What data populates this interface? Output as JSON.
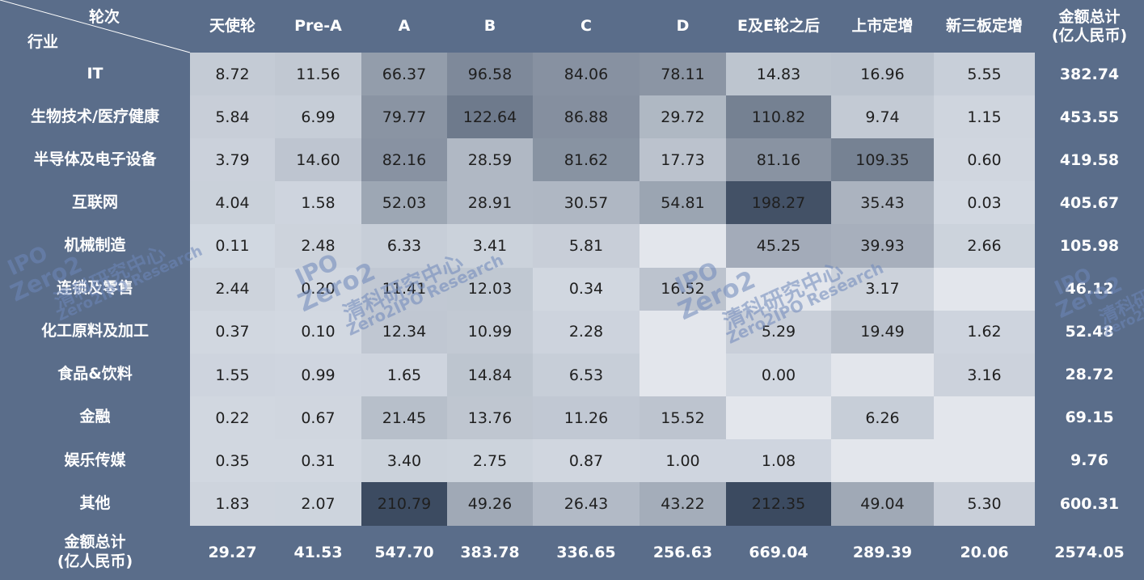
{
  "corner": {
    "top": "轮次",
    "bottom": "行业"
  },
  "columns": [
    "天使轮",
    "Pre-A",
    "A",
    "B",
    "C",
    "D",
    "E及E轮之后",
    "上市定增",
    "新三板定增"
  ],
  "total_header": [
    "金额总计",
    "(亿人民币)"
  ],
  "rows": [
    {
      "label": "IT",
      "values": [
        "8.72",
        "11.56",
        "66.37",
        "96.58",
        "84.06",
        "78.11",
        "14.83",
        "16.96",
        "5.55"
      ],
      "total": "382.74"
    },
    {
      "label": "生物技术/医疗健康",
      "values": [
        "5.84",
        "6.99",
        "79.77",
        "122.64",
        "86.88",
        "29.72",
        "110.82",
        "9.74",
        "1.15"
      ],
      "total": "453.55"
    },
    {
      "label": "半导体及电子设备",
      "values": [
        "3.79",
        "14.60",
        "82.16",
        "28.59",
        "81.62",
        "17.73",
        "81.16",
        "109.35",
        "0.60"
      ],
      "total": "419.58"
    },
    {
      "label": "互联网",
      "values": [
        "4.04",
        "1.58",
        "52.03",
        "28.91",
        "30.57",
        "54.81",
        "198.27",
        "35.43",
        "0.03"
      ],
      "total": "405.67"
    },
    {
      "label": "机械制造",
      "values": [
        "0.11",
        "2.48",
        "6.33",
        "3.41",
        "5.81",
        "",
        "45.25",
        "39.93",
        "2.66"
      ],
      "total": "105.98"
    },
    {
      "label": "连锁及零售",
      "values": [
        "2.44",
        "0.20",
        "11.41",
        "12.03",
        "0.34",
        "16.52",
        "",
        "3.17",
        ""
      ],
      "total": "46.12"
    },
    {
      "label": "化工原料及加工",
      "values": [
        "0.37",
        "0.10",
        "12.34",
        "10.99",
        "2.28",
        "",
        "5.29",
        "19.49",
        "1.62"
      ],
      "total": "52.48"
    },
    {
      "label": "食品&饮料",
      "values": [
        "1.55",
        "0.99",
        "1.65",
        "14.84",
        "6.53",
        "",
        "0.00",
        "",
        "3.16"
      ],
      "total": "28.72"
    },
    {
      "label": "金融",
      "values": [
        "0.22",
        "0.67",
        "21.45",
        "13.76",
        "11.26",
        "15.52",
        "",
        "6.26",
        ""
      ],
      "total": "69.15"
    },
    {
      "label": "娱乐传媒",
      "values": [
        "0.35",
        "0.31",
        "3.40",
        "2.75",
        "0.87",
        "1.00",
        "1.08",
        "",
        ""
      ],
      "total": "9.76"
    },
    {
      "label": "其他",
      "values": [
        "1.83",
        "2.07",
        "210.79",
        "49.26",
        "26.43",
        "43.22",
        "212.35",
        "49.04",
        "5.30"
      ],
      "total": "600.31"
    }
  ],
  "total_row": {
    "label": [
      "金额总计",
      "(亿人民币)"
    ],
    "values": [
      "29.27",
      "41.53",
      "547.70",
      "383.78",
      "336.65",
      "256.63",
      "669.04",
      "289.39",
      "20.06"
    ],
    "total": "2574.05"
  },
  "chart_data": {
    "type": "heatmap",
    "x_categories": [
      "天使轮",
      "Pre-A",
      "A",
      "B",
      "C",
      "D",
      "E及E轮之后",
      "上市定增",
      "新三板定增"
    ],
    "y_categories": [
      "IT",
      "生物技术/医疗健康",
      "半导体及电子设备",
      "互联网",
      "机械制造",
      "连锁及零售",
      "化工原料及加工",
      "食品&饮料",
      "金融",
      "娱乐传媒",
      "其他"
    ],
    "values": [
      [
        8.72,
        11.56,
        66.37,
        96.58,
        84.06,
        78.11,
        14.83,
        16.96,
        5.55
      ],
      [
        5.84,
        6.99,
        79.77,
        122.64,
        86.88,
        29.72,
        110.82,
        9.74,
        1.15
      ],
      [
        3.79,
        14.6,
        82.16,
        28.59,
        81.62,
        17.73,
        81.16,
        109.35,
        0.6
      ],
      [
        4.04,
        1.58,
        52.03,
        28.91,
        30.57,
        54.81,
        198.27,
        35.43,
        0.03
      ],
      [
        0.11,
        2.48,
        6.33,
        3.41,
        5.81,
        null,
        45.25,
        39.93,
        2.66
      ],
      [
        2.44,
        0.2,
        11.41,
        12.03,
        0.34,
        16.52,
        null,
        3.17,
        null
      ],
      [
        0.37,
        0.1,
        12.34,
        10.99,
        2.28,
        null,
        5.29,
        19.49,
        1.62
      ],
      [
        1.55,
        0.99,
        1.65,
        14.84,
        6.53,
        null,
        0.0,
        null,
        3.16
      ],
      [
        0.22,
        0.67,
        21.45,
        13.76,
        11.26,
        15.52,
        null,
        6.26,
        null
      ],
      [
        0.35,
        0.31,
        3.4,
        2.75,
        0.87,
        1.0,
        1.08,
        null,
        null
      ],
      [
        1.83,
        2.07,
        210.79,
        49.26,
        26.43,
        43.22,
        212.35,
        49.04,
        5.3
      ]
    ],
    "row_totals": [
      382.74,
      453.55,
      419.58,
      405.67,
      105.98,
      46.12,
      52.48,
      28.72,
      69.15,
      9.76,
      600.31
    ],
    "column_totals": [
      29.27,
      41.53,
      547.7,
      383.78,
      336.65,
      256.63,
      669.04,
      289.39,
      20.06
    ],
    "grand_total": 2574.05,
    "colors": {
      "background": "#5a6d8a",
      "empty_cell": "#e3e6ec",
      "low": "#d2d8e1",
      "high": "#3b4a60",
      "text_dark": "#1f1f1f",
      "text_light": "#ffffff"
    }
  },
  "watermark": {
    "logo_text": "IPO",
    "brand": "Zero2",
    "cn_name": "清科研究中心",
    "en_name": "Zero2IPO Research"
  }
}
